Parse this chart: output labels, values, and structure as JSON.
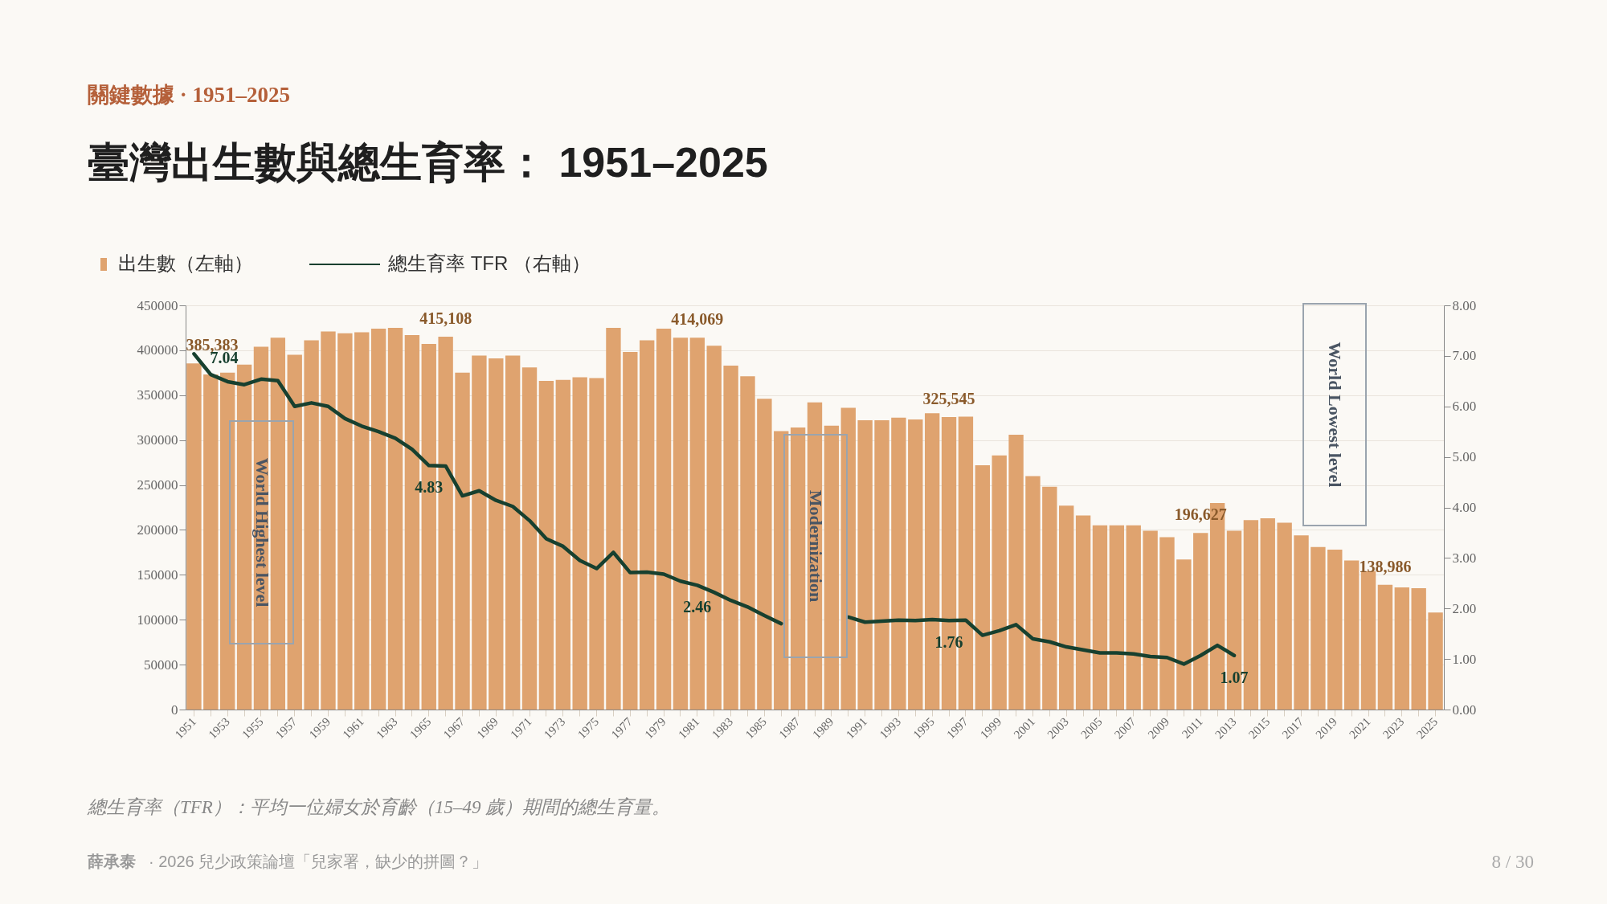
{
  "chart_data": {
    "type": "bar",
    "title": "臺灣出生數與總生育率： 1951–2025",
    "subtitle": "關鍵數據 · 1951–2025",
    "categories": [
      "1951",
      null,
      "1953",
      null,
      "1955",
      null,
      "1957",
      null,
      "1959",
      null,
      "1961",
      null,
      "1963",
      null,
      "1965",
      null,
      "1967",
      null,
      "1969",
      null,
      "1971",
      null,
      "1973",
      null,
      "1975",
      null,
      "1977",
      null,
      "1979",
      null,
      "1981",
      null,
      "1983",
      null,
      "1985",
      null,
      "1987",
      null,
      "1989",
      null,
      "1991",
      null,
      "1993",
      null,
      "1995",
      null,
      "1997",
      null,
      "1999",
      null,
      "2001",
      null,
      "2003",
      null,
      "2005",
      null,
      "2007",
      null,
      "2009",
      null,
      "2011",
      null,
      "2013",
      null,
      "2015",
      null,
      "2017",
      null,
      "2019",
      null,
      "2021",
      null,
      "2023",
      null,
      "2025"
    ],
    "series": [
      {
        "name": "出生數（左軸）",
        "type": "bar",
        "color": "#dfa36f",
        "values": [
          385383,
          373000,
          375000,
          384000,
          404000,
          414000,
          395000,
          411000,
          421000,
          419000,
          420000,
          424000,
          425000,
          417000,
          407000,
          415108,
          375000,
          394000,
          391000,
          394000,
          381000,
          366000,
          367000,
          370000,
          369000,
          425000,
          398000,
          411000,
          424000,
          414000,
          414069,
          405000,
          383000,
          371000,
          346000,
          310000,
          314000,
          342000,
          316000,
          336000,
          322000,
          322000,
          325000,
          323000,
          330000,
          325545,
          326000,
          272000,
          283000,
          306000,
          260000,
          248000,
          227000,
          216000,
          205000,
          205000,
          205000,
          199000,
          192000,
          167000,
          196627,
          230000,
          199000,
          211000,
          213000,
          208000,
          194000,
          181000,
          178000,
          166000,
          154000,
          138986,
          136000,
          135000,
          108000
        ],
        "value_labels": [
          "385,383",
          null,
          null,
          null,
          null,
          null,
          null,
          null,
          null,
          null,
          null,
          null,
          null,
          null,
          null,
          "415,108",
          null,
          null,
          null,
          null,
          null,
          null,
          null,
          null,
          null,
          null,
          null,
          null,
          null,
          null,
          "414,069",
          null,
          null,
          null,
          null,
          null,
          null,
          null,
          null,
          null,
          null,
          null,
          null,
          null,
          null,
          "325,545",
          null,
          null,
          null,
          null,
          null,
          null,
          null,
          null,
          null,
          null,
          null,
          null,
          null,
          null,
          "196,627",
          null,
          null,
          null,
          null,
          null,
          null,
          null,
          null,
          null,
          null,
          "138,986",
          null,
          null,
          null
        ]
      },
      {
        "name": "總生育率 TFR （右軸）",
        "type": "line",
        "axis": "y2",
        "color": "#17402f",
        "values": [
          7.04,
          6.63,
          6.49,
          6.43,
          6.54,
          6.51,
          6.0,
          6.07,
          6.0,
          5.76,
          5.61,
          5.5,
          5.37,
          5.15,
          4.83,
          4.82,
          4.23,
          4.33,
          4.14,
          4.02,
          3.74,
          3.38,
          3.23,
          2.95,
          2.79,
          3.11,
          2.71,
          2.72,
          2.68,
          2.54,
          2.46,
          2.32,
          2.16,
          2.03,
          1.86,
          1.7,
          null,
          null,
          null,
          1.83,
          1.73,
          1.75,
          1.77,
          1.76,
          1.78,
          1.76,
          1.77,
          1.47,
          1.56,
          1.68,
          1.4,
          1.34,
          1.24,
          1.18,
          1.12,
          1.12,
          1.1,
          1.05,
          1.03,
          0.9,
          1.07,
          1.27,
          1.07,
          null,
          null,
          null,
          null,
          null,
          null,
          null,
          null,
          null,
          null,
          null,
          null
        ],
        "value_labels": [
          "7.04",
          null,
          null,
          null,
          null,
          null,
          null,
          null,
          null,
          null,
          null,
          null,
          null,
          null,
          "4.83",
          null,
          null,
          null,
          null,
          null,
          null,
          null,
          null,
          null,
          null,
          null,
          null,
          null,
          null,
          null,
          "2.46",
          null,
          null,
          null,
          null,
          null,
          null,
          null,
          null,
          null,
          null,
          null,
          null,
          null,
          null,
          "1.76",
          null,
          null,
          null,
          null,
          null,
          null,
          null,
          null,
          null,
          null,
          null,
          null,
          null,
          null,
          null,
          null,
          "1.07",
          null,
          null,
          null,
          null,
          null,
          null,
          null,
          null,
          null,
          null,
          null,
          null
        ]
      }
    ],
    "ylim": [
      0,
      450000
    ],
    "yticks": [
      0,
      50000,
      100000,
      150000,
      200000,
      250000,
      300000,
      350000,
      400000,
      450000
    ],
    "y2lim": [
      0,
      8
    ],
    "y2ticks": [
      {
        "value": 0,
        "label": "0.00"
      },
      {
        "value": 1,
        "label": "1.00"
      },
      {
        "value": 2,
        "label": "2.00"
      },
      {
        "value": 3,
        "label": "3.00"
      },
      {
        "value": 4,
        "label": "4.00"
      },
      {
        "value": 5,
        "label": "5.00"
      },
      {
        "value": 6,
        "label": "6.00"
      },
      {
        "value": 7,
        "label": "7.00"
      },
      {
        "value": 8,
        "label": "8.00"
      }
    ],
    "grid": "y",
    "legend": "top left",
    "annotations": [
      "World Highest level",
      "Modernization",
      "World Lowest level",
      "總生育率（TFR）：平均一位婦女於育齡（15–49 歲）期間的總生育量。",
      "薛承泰",
      "· 2026 兒少政策論壇「兒家署，缺少的拼圖？」",
      "8 / 30"
    ]
  }
}
